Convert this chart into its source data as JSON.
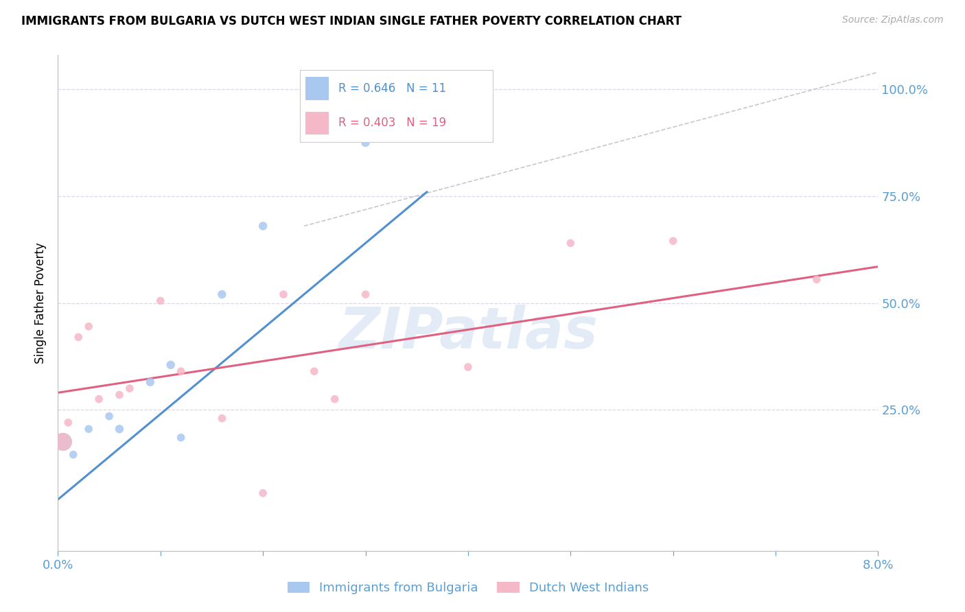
{
  "title": "IMMIGRANTS FROM BULGARIA VS DUTCH WEST INDIAN SINGLE FATHER POVERTY CORRELATION CHART",
  "source": "Source: ZipAtlas.com",
  "ylabel": "Single Father Poverty",
  "ytick_labels": [
    "25.0%",
    "50.0%",
    "75.0%",
    "100.0%"
  ],
  "ytick_values": [
    0.25,
    0.5,
    0.75,
    1.0
  ],
  "xlim": [
    0.0,
    0.08
  ],
  "ylim": [
    -0.08,
    1.08
  ],
  "yplot_min": 0.0,
  "yplot_max": 1.0,
  "legend_blue_r": "0.646",
  "legend_blue_n": "11",
  "legend_pink_r": "0.403",
  "legend_pink_n": "19",
  "legend_label_blue": "Immigrants from Bulgaria",
  "legend_label_pink": "Dutch West Indians",
  "blue_color": "#a8c8f0",
  "pink_color": "#f5b8c8",
  "blue_line_color": "#5090d0",
  "pink_line_color": "#e06080",
  "diagonal_color": "#c8c8c8",
  "bg_color": "#ffffff",
  "grid_color": "#d8d8e8",
  "watermark": "ZIPatlas",
  "blue_scatter_x": [
    0.0005,
    0.0015,
    0.003,
    0.005,
    0.006,
    0.009,
    0.011,
    0.012,
    0.016,
    0.02,
    0.03
  ],
  "blue_scatter_y": [
    0.175,
    0.145,
    0.205,
    0.235,
    0.205,
    0.315,
    0.355,
    0.185,
    0.52,
    0.68,
    0.875
  ],
  "blue_scatter_size": [
    350,
    70,
    70,
    70,
    80,
    80,
    80,
    70,
    80,
    80,
    80
  ],
  "pink_scatter_x": [
    0.0005,
    0.001,
    0.002,
    0.003,
    0.004,
    0.006,
    0.007,
    0.01,
    0.012,
    0.016,
    0.02,
    0.022,
    0.025,
    0.027,
    0.03,
    0.04,
    0.05,
    0.06,
    0.074
  ],
  "pink_scatter_y": [
    0.175,
    0.22,
    0.42,
    0.445,
    0.275,
    0.285,
    0.3,
    0.505,
    0.34,
    0.23,
    0.055,
    0.52,
    0.34,
    0.275,
    0.52,
    0.35,
    0.64,
    0.645,
    0.555
  ],
  "pink_scatter_size": [
    350,
    70,
    70,
    70,
    70,
    70,
    70,
    70,
    70,
    70,
    70,
    70,
    70,
    70,
    70,
    70,
    70,
    70,
    70
  ],
  "blue_line_x": [
    0.0,
    0.036
  ],
  "blue_line_y": [
    0.04,
    0.76
  ],
  "pink_line_x": [
    0.0,
    0.08
  ],
  "pink_line_y": [
    0.29,
    0.585
  ],
  "diag_line_x": [
    0.024,
    0.08
  ],
  "diag_line_y": [
    0.68,
    1.04
  ]
}
